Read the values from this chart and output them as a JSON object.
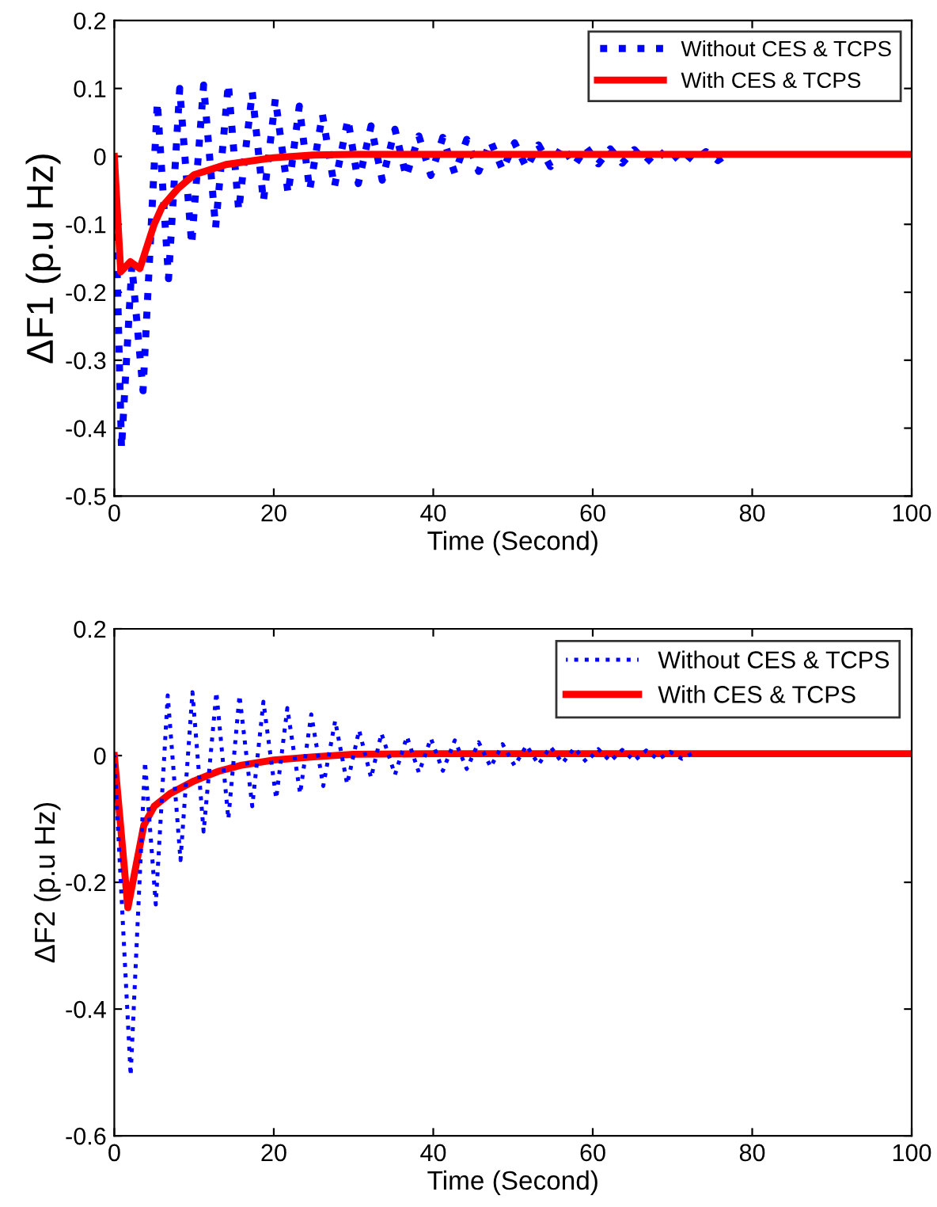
{
  "chart_data": [
    {
      "type": "line",
      "xlabel": "Time (Second)",
      "ylabel": "ΔF1 (p.u Hz)",
      "xlim": [
        0,
        100
      ],
      "ylim": [
        -0.5,
        0.2
      ],
      "xticks": [
        0,
        20,
        40,
        60,
        80,
        100
      ],
      "yticks": [
        -0.5,
        -0.4,
        -0.3,
        -0.2,
        -0.1,
        0,
        0.1,
        0.2
      ],
      "grid": false,
      "legend": "top right",
      "marker": "none",
      "series": [
        {
          "name": "Without CES & TCPS",
          "color": "#0000ff",
          "line_style": "dotted",
          "x": [
            0,
            0.9,
            2.2,
            3.6,
            5.4,
            6.8,
            8.2,
            9.7,
            11.2,
            12.7,
            14.3,
            15.6,
            17.3,
            18.7,
            20.2,
            21.8,
            23.2,
            24.5,
            26.1,
            27.6,
            29.3,
            30.6,
            32.2,
            33.6,
            35.2,
            36.6,
            38.2,
            39.7,
            41.2,
            42.7,
            44.2,
            45.7,
            47.2,
            48.7,
            50.2,
            51.7,
            53.2,
            54.7,
            56.2,
            57.7,
            59.2,
            60.7,
            62.2,
            63.7,
            65.2,
            66.7,
            68.2,
            69.7,
            71.2,
            72.7,
            74.2,
            75.7,
            77.2
          ],
          "values": [
            0,
            -0.43,
            -0.16,
            -0.345,
            0.08,
            -0.18,
            0.1,
            -0.13,
            0.105,
            -0.105,
            0.107,
            -0.08,
            0.095,
            -0.066,
            0.085,
            -0.055,
            0.074,
            -0.05,
            0.062,
            -0.045,
            0.055,
            -0.04,
            0.045,
            -0.035,
            0.04,
            -0.03,
            0.03,
            -0.028,
            0.028,
            -0.025,
            0.025,
            -0.022,
            0.022,
            -0.02,
            0.02,
            -0.017,
            0.017,
            -0.015,
            0.015,
            -0.013,
            0.013,
            -0.011,
            0.011,
            -0.01,
            0.01,
            -0.009,
            0.009,
            -0.008,
            0.008,
            -0.007,
            0.007,
            -0.006,
            0.006
          ]
        },
        {
          "name": "With CES & TCPS",
          "color": "#ff0000",
          "line_style": "solid",
          "x": [
            0,
            0.8,
            2,
            3.2,
            5,
            6,
            8,
            10,
            14,
            20,
            25,
            30,
            40,
            60,
            80,
            100
          ],
          "values": [
            0,
            -0.17,
            -0.155,
            -0.165,
            -0.1,
            -0.074,
            -0.047,
            -0.027,
            -0.012,
            -0.002,
            0.002,
            0.003,
            0.003,
            0.003,
            0.003,
            0.003
          ]
        }
      ]
    },
    {
      "type": "line",
      "xlabel": "Time (Second)",
      "ylabel": "ΔF2 (p.u Hz)",
      "xlim": [
        0,
        100
      ],
      "ylim": [
        -0.6,
        0.2
      ],
      "xticks": [
        0,
        20,
        40,
        60,
        80,
        100
      ],
      "yticks": [
        -0.6,
        -0.4,
        -0.2,
        0,
        0.2
      ],
      "grid": false,
      "legend": "top right",
      "marker": "none",
      "series": [
        {
          "name": "Without CES & TCPS",
          "color": "#0000ff",
          "line_style": "dotted",
          "x": [
            0,
            2.05,
            3.85,
            5.2,
            6.7,
            8.3,
            9.8,
            11.2,
            12.8,
            14.3,
            15.7,
            17.3,
            18.7,
            20.3,
            21.7,
            23.3,
            24.7,
            26.2,
            27.7,
            29.2,
            30.7,
            32.2,
            33.5,
            35.2,
            36.7,
            38.2,
            39.7,
            41.2,
            42.7,
            44.2,
            45.7,
            47.2,
            48.7,
            50.2,
            51.7,
            53.2,
            54.7,
            56.2,
            57.7,
            59.2,
            60.7,
            62.2,
            63.7,
            65.2,
            66.7,
            68.2,
            69.7,
            71.2,
            72.7
          ],
          "values": [
            0,
            -0.505,
            -0.01,
            -0.235,
            0.095,
            -0.165,
            0.1,
            -0.12,
            0.1,
            -0.1,
            0.095,
            -0.08,
            0.085,
            -0.068,
            0.075,
            -0.06,
            0.065,
            -0.048,
            0.055,
            -0.045,
            0.04,
            -0.035,
            0.035,
            -0.03,
            0.03,
            -0.027,
            0.027,
            -0.024,
            0.024,
            -0.021,
            0.021,
            -0.018,
            0.018,
            -0.016,
            0.016,
            -0.014,
            0.014,
            -0.012,
            0.012,
            -0.01,
            0.01,
            -0.009,
            0.009,
            -0.008,
            0.008,
            -0.006,
            0.006,
            -0.005,
            0.005
          ]
        },
        {
          "name": "With CES & TCPS",
          "color": "#ff0000",
          "line_style": "solid",
          "x": [
            0,
            1.7,
            3.7,
            5,
            7,
            10,
            13,
            16,
            20,
            25,
            30,
            40,
            60,
            80,
            100
          ],
          "values": [
            0,
            -0.24,
            -0.11,
            -0.08,
            -0.06,
            -0.04,
            -0.025,
            -0.015,
            -0.007,
            -0.002,
            0.002,
            0.003,
            0.003,
            0.003,
            0.003
          ]
        }
      ]
    }
  ]
}
